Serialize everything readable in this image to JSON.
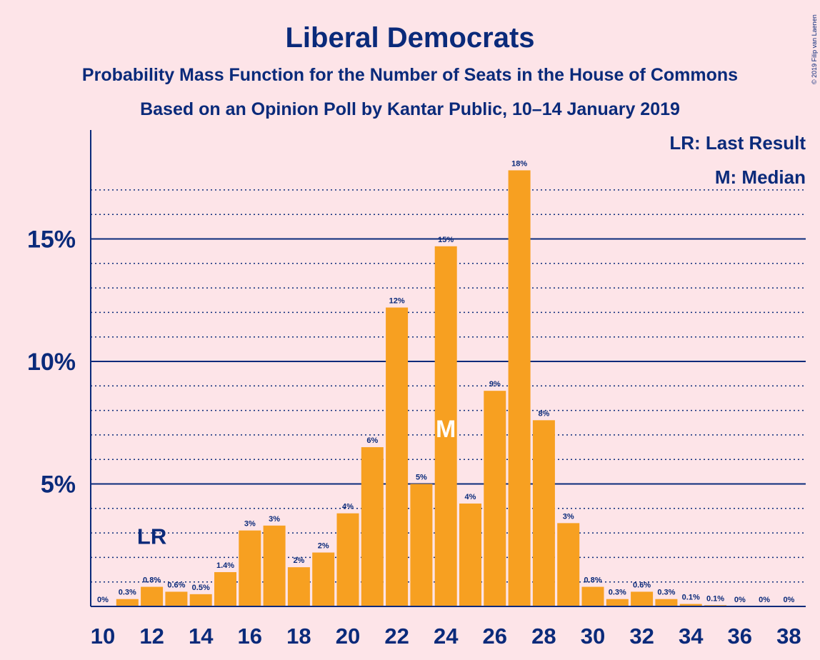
{
  "chart_data": {
    "type": "bar",
    "title": "Liberal Democrats",
    "subtitle_1": "Probability Mass Function for the Number of Seats in the House of Commons",
    "subtitle_2": "Based on an Opinion Poll by Kantar Public, 10–14 January 2019",
    "copyright": "© 2019 Filip van Laenen",
    "legend": [
      "LR: Last Result",
      "M: Median"
    ],
    "last_result_label": "LR",
    "last_result_seat": 12,
    "median_label": "M",
    "median_seat": 24,
    "xlabel": "",
    "ylabel": "",
    "ylim": [
      0,
      19.5
    ],
    "yticks": [
      {
        "value": 5,
        "label": "5%"
      },
      {
        "value": 10,
        "label": "10%"
      },
      {
        "value": 15,
        "label": "15%"
      }
    ],
    "xtick_labels": [
      "10",
      "12",
      "14",
      "16",
      "18",
      "20",
      "22",
      "24",
      "26",
      "28",
      "30",
      "32",
      "34",
      "36",
      "38"
    ],
    "bar_color": "#f7a021",
    "axis_color": "#0a2a7a",
    "bars": [
      {
        "seat": 10,
        "value": 0.0,
        "label": "0%"
      },
      {
        "seat": 11,
        "value": 0.3,
        "label": "0.3%"
      },
      {
        "seat": 12,
        "value": 0.8,
        "label": "0.8%"
      },
      {
        "seat": 13,
        "value": 0.6,
        "label": "0.6%"
      },
      {
        "seat": 14,
        "value": 0.5,
        "label": "0.5%"
      },
      {
        "seat": 15,
        "value": 1.4,
        "label": "1.4%"
      },
      {
        "seat": 16,
        "value": 3.1,
        "label": "3%"
      },
      {
        "seat": 17,
        "value": 3.3,
        "label": "3%"
      },
      {
        "seat": 18,
        "value": 1.6,
        "label": "2%"
      },
      {
        "seat": 19,
        "value": 2.2,
        "label": "2%"
      },
      {
        "seat": 20,
        "value": 3.8,
        "label": "4%"
      },
      {
        "seat": 21,
        "value": 6.5,
        "label": "6%"
      },
      {
        "seat": 22,
        "value": 12.2,
        "label": "12%"
      },
      {
        "seat": 23,
        "value": 5.0,
        "label": "5%"
      },
      {
        "seat": 24,
        "value": 14.7,
        "label": "15%"
      },
      {
        "seat": 25,
        "value": 4.2,
        "label": "4%"
      },
      {
        "seat": 26,
        "value": 8.8,
        "label": "9%"
      },
      {
        "seat": 27,
        "value": 17.8,
        "label": "18%"
      },
      {
        "seat": 28,
        "value": 7.6,
        "label": "8%"
      },
      {
        "seat": 29,
        "value": 3.4,
        "label": "3%"
      },
      {
        "seat": 30,
        "value": 0.8,
        "label": "0.8%"
      },
      {
        "seat": 31,
        "value": 0.3,
        "label": "0.3%"
      },
      {
        "seat": 32,
        "value": 0.6,
        "label": "0.6%"
      },
      {
        "seat": 33,
        "value": 0.3,
        "label": "0.3%"
      },
      {
        "seat": 34,
        "value": 0.1,
        "label": "0.1%"
      },
      {
        "seat": 35,
        "value": 0.05,
        "label": "0.1%"
      },
      {
        "seat": 36,
        "value": 0.0,
        "label": "0%"
      },
      {
        "seat": 37,
        "value": 0.0,
        "label": "0%"
      },
      {
        "seat": 38,
        "value": 0.0,
        "label": "0%"
      }
    ]
  }
}
